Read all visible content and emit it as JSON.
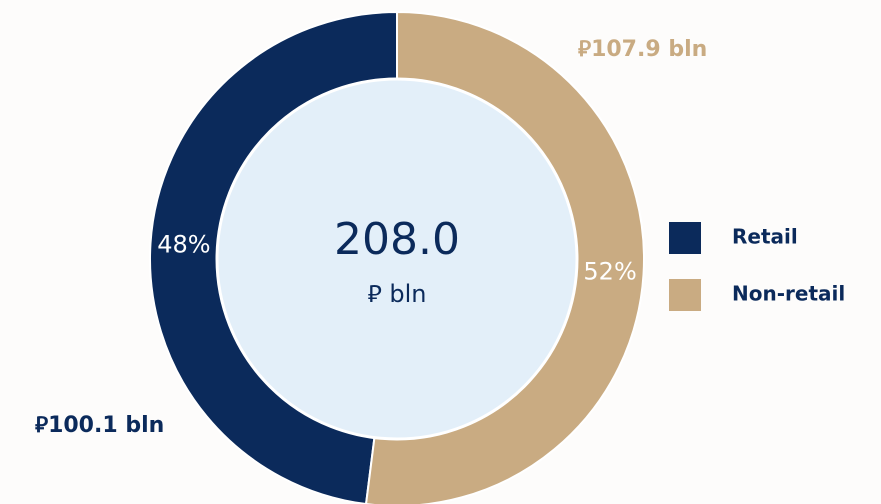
{
  "chart_data": {
    "type": "pie",
    "donut": true,
    "categories": [
      "Retail",
      "Non-retail"
    ],
    "values": [
      48,
      52
    ],
    "value_labels": [
      "48%",
      "52%"
    ],
    "colors": [
      "#0b2a5b",
      "#c9ab82"
    ],
    "amounts": [
      100.1,
      107.9
    ],
    "amount_labels": [
      "⃁100.1 bln",
      "⃁107.9 bln"
    ],
    "center": {
      "value": 208,
      "label": "208.0"
    },
    "center_unit": "⃁ bln"
  }
}
